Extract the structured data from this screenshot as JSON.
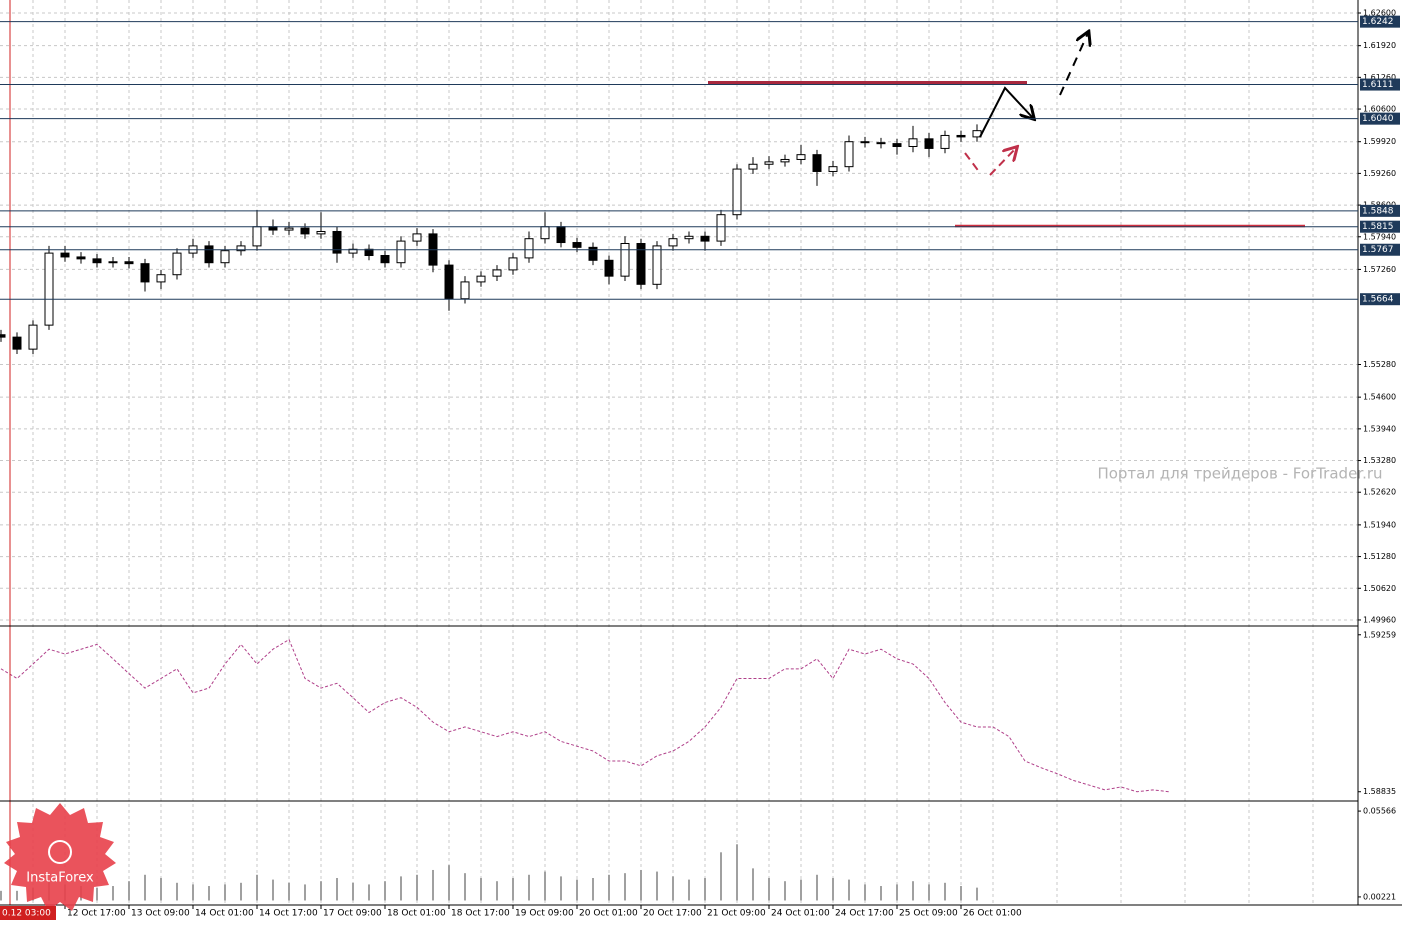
{
  "chart_data": {
    "type": "candlestick",
    "color": "#000000",
    "watermark": "Портал для трейдеров - ForTrader.ru",
    "logo": "InstaForex",
    "first_time_label": "0.12 03:00",
    "open": [
      1.559,
      1.5585,
      1.556,
      1.561,
      1.576,
      1.5752,
      1.5748,
      1.574,
      1.5742,
      1.5738,
      1.57,
      1.5715,
      1.576,
      1.5775,
      1.574,
      1.5765,
      1.5775,
      1.5815,
      1.5808,
      1.5812,
      1.58,
      1.5805,
      1.576,
      1.5768,
      1.5755,
      1.574,
      1.5785,
      1.58,
      1.5735,
      1.5665,
      1.57,
      1.5712,
      1.5725,
      1.575,
      1.579,
      1.5815,
      1.5782,
      1.5772,
      1.5745,
      1.5712,
      1.578,
      1.5695,
      1.5775,
      1.579,
      1.5795,
      1.5785,
      1.584,
      1.5935,
      1.5945,
      1.595,
      1.5955,
      1.5965,
      1.593,
      1.594,
      1.5992,
      1.599,
      1.5988,
      1.5982,
      1.5998,
      1.5978,
      1.6005,
      1.6002
    ],
    "high": [
      1.56,
      1.5595,
      1.562,
      1.5775,
      1.5775,
      1.5762,
      1.5758,
      1.5752,
      1.5752,
      1.5748,
      1.5725,
      1.577,
      1.579,
      1.5785,
      1.5775,
      1.5785,
      1.585,
      1.583,
      1.5825,
      1.5822,
      1.5845,
      1.5815,
      1.578,
      1.5778,
      1.5765,
      1.5795,
      1.5812,
      1.581,
      1.5745,
      1.5712,
      1.5722,
      1.5735,
      1.576,
      1.5805,
      1.5845,
      1.5825,
      1.5792,
      1.5782,
      1.5755,
      1.5795,
      1.579,
      1.5785,
      1.58,
      1.5805,
      1.5805,
      1.585,
      1.5945,
      1.596,
      1.5962,
      1.5965,
      1.5985,
      1.5975,
      1.5952,
      1.6005,
      1.6002,
      1.6,
      1.5998,
      1.6025,
      1.601,
      1.6015,
      1.6015,
      1.6028
    ],
    "low": [
      1.5575,
      1.555,
      1.555,
      1.56,
      1.5742,
      1.5738,
      1.573,
      1.573,
      1.5728,
      1.568,
      1.5685,
      1.5705,
      1.575,
      1.573,
      1.573,
      1.5755,
      1.5765,
      1.5798,
      1.5798,
      1.579,
      1.579,
      1.574,
      1.575,
      1.5745,
      1.573,
      1.573,
      1.5775,
      1.572,
      1.564,
      1.5655,
      1.569,
      1.5702,
      1.5715,
      1.574,
      1.578,
      1.5772,
      1.5762,
      1.5735,
      1.5695,
      1.5702,
      1.5685,
      1.5685,
      1.5765,
      1.578,
      1.5765,
      1.5775,
      1.583,
      1.5925,
      1.5935,
      1.594,
      1.5945,
      1.59,
      1.592,
      1.593,
      1.598,
      1.5978,
      1.5965,
      1.597,
      1.596,
      1.5968,
      1.5992,
      1.5992
    ],
    "close": [
      1.5585,
      1.556,
      1.561,
      1.576,
      1.5752,
      1.5748,
      1.574,
      1.5742,
      1.5738,
      1.57,
      1.5715,
      1.576,
      1.5775,
      1.574,
      1.5765,
      1.5775,
      1.5815,
      1.5808,
      1.5812,
      1.58,
      1.5805,
      1.576,
      1.5768,
      1.5755,
      1.574,
      1.5785,
      1.58,
      1.5735,
      1.5665,
      1.57,
      1.5712,
      1.5725,
      1.575,
      1.579,
      1.5815,
      1.5782,
      1.5772,
      1.5745,
      1.5712,
      1.578,
      1.5695,
      1.5775,
      1.579,
      1.5795,
      1.5785,
      1.584,
      1.5935,
      1.5945,
      1.595,
      1.5955,
      1.5965,
      1.593,
      1.594,
      1.5992,
      1.599,
      1.5988,
      1.5982,
      1.5998,
      1.5978,
      1.6005,
      1.6002,
      1.6015
    ],
    "xlim": [
      -0.0625,
      84.8125
    ],
    "xticks": [
      {
        "value": 4,
        "label": "12 Oct 17:00"
      },
      {
        "value": 8,
        "label": "13 Oct 09:00"
      },
      {
        "value": 12,
        "label": "14 Oct 01:00"
      },
      {
        "value": 16,
        "label": "14 Oct 17:00"
      },
      {
        "value": 20,
        "label": "17 Oct 09:00"
      },
      {
        "value": 24,
        "label": "18 Oct 01:00"
      },
      {
        "value": 28,
        "label": "18 Oct 17:00"
      },
      {
        "value": 32,
        "label": "19 Oct 09:00"
      },
      {
        "value": 36,
        "label": "20 Oct 01:00"
      },
      {
        "value": 40,
        "label": "20 Oct 17:00"
      },
      {
        "value": 44,
        "label": "21 Oct 09:00"
      },
      {
        "value": 48,
        "label": "24 Oct 01:00"
      },
      {
        "value": 52,
        "label": "24 Oct 17:00"
      },
      {
        "value": 56,
        "label": "25 Oct 09:00"
      },
      {
        "value": 60,
        "label": "26 Oct 01:00"
      }
    ],
    "ylim": [
      1.49855,
      1.62871
    ],
    "yticks": [
      {
        "value": 1.626,
        "label": "1.62600"
      },
      {
        "value": 1.6192,
        "label": "1.61920"
      },
      {
        "value": 1.6126,
        "label": "1.61260"
      },
      {
        "value": 1.606,
        "label": "1.60600"
      },
      {
        "value": 1.5992,
        "label": "1.59920"
      },
      {
        "value": 1.5926,
        "label": "1.59260"
      },
      {
        "value": 1.586,
        "label": "1.58600"
      },
      {
        "value": 1.5794,
        "label": "1.57940"
      },
      {
        "value": 1.5726,
        "label": "1.57260"
      },
      {
        "value": 1.5528,
        "label": "1.55280"
      },
      {
        "value": 1.546,
        "label": "1.54600"
      },
      {
        "value": 1.5394,
        "label": "1.53940"
      },
      {
        "value": 1.5328,
        "label": "1.53280"
      },
      {
        "value": 1.5262,
        "label": "1.52620"
      },
      {
        "value": 1.5194,
        "label": "1.51940"
      },
      {
        "value": 1.5128,
        "label": "1.51280"
      },
      {
        "value": 1.5062,
        "label": "1.50620"
      },
      {
        "value": 1.4996,
        "label": "1.49960"
      }
    ],
    "grid": true,
    "levels": [
      1.6242,
      1.6111,
      {
        "value": 1.604,
        "label": "1.6040"
      },
      1.5848,
      1.5815,
      1.5767,
      1.5664
    ],
    "level_color": "#1f3a5a",
    "indicator": {
      "color": "#b0408a",
      "ylim": [
        1.5881,
        1.5928
      ],
      "yticks": [
        1.59259,
        1.58835
      ],
      "values": [
        1.59167,
        1.59141,
        1.5918,
        1.5922,
        1.59207,
        1.5922,
        1.59233,
        1.59194,
        1.59154,
        1.59115,
        1.59141,
        1.59167,
        1.59102,
        1.59115,
        1.5918,
        1.59233,
        1.5918,
        1.5922,
        1.59246,
        1.59141,
        1.59115,
        1.59128,
        1.59089,
        1.59049,
        1.59076,
        1.59089,
        1.59063,
        1.59023,
        1.58997,
        1.5901,
        1.58997,
        1.58984,
        1.58997,
        1.58984,
        1.58997,
        1.58971,
        1.58958,
        1.58945,
        1.58918,
        1.58918,
        1.58905,
        1.58932,
        1.58945,
        1.58971,
        1.5901,
        1.59063,
        1.59141,
        1.59141,
        1.59141,
        1.59167,
        1.59167,
        1.59194,
        1.59141,
        1.5922,
        1.59207,
        1.5922,
        1.59194,
        1.5918,
        1.59141,
        1.59076,
        1.59023,
        1.5901,
        1.5901,
        1.58984,
        1.58918,
        1.589,
        1.58884,
        1.58866,
        1.58853,
        1.5884,
        1.58848,
        1.58835,
        1.5884,
        1.58835
      ]
    },
    "volume": {
      "color": "#a0a0a0",
      "ylim": [
        -0.00282,
        0.06132
      ],
      "yticks": [
        0.05566,
        0.00221
      ],
      "values": [
        0.006,
        0.006,
        0.008,
        0.012,
        0.01,
        0.009,
        0.008,
        0.009,
        0.012,
        0.016,
        0.014,
        0.011,
        0.01,
        0.009,
        0.01,
        0.011,
        0.016,
        0.013,
        0.011,
        0.01,
        0.012,
        0.014,
        0.011,
        0.01,
        0.012,
        0.015,
        0.016,
        0.019,
        0.022,
        0.017,
        0.014,
        0.012,
        0.014,
        0.016,
        0.018,
        0.015,
        0.013,
        0.014,
        0.016,
        0.017,
        0.019,
        0.018,
        0.015,
        0.013,
        0.014,
        0.03,
        0.035,
        0.02,
        0.014,
        0.012,
        0.013,
        0.016,
        0.014,
        0.013,
        0.01,
        0.009,
        0.01,
        0.012,
        0.01,
        0.011,
        0.009,
        0.008
      ]
    }
  }
}
